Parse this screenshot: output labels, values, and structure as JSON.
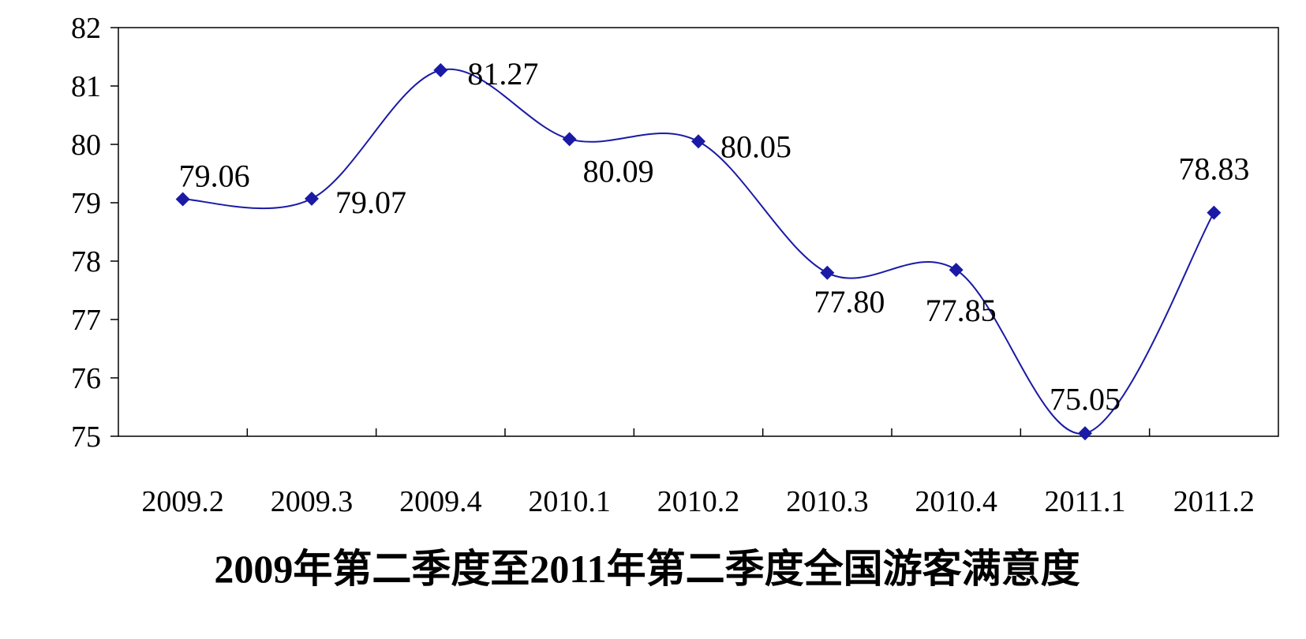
{
  "chart_data": {
    "type": "line",
    "title": "2009年第二季度至2011年第二季度全国游客满意度",
    "categories": [
      "2009.2",
      "2009.3",
      "2009.4",
      "2010.1",
      "2010.2",
      "2010.3",
      "2010.4",
      "2011.1",
      "2011.2"
    ],
    "series": [
      {
        "values": [
          79.06,
          79.07,
          81.27,
          80.09,
          80.05,
          77.8,
          77.85,
          75.05,
          78.83
        ],
        "labels": [
          "79.06",
          "79.07",
          "81.27",
          "80.09",
          "80.05",
          "77.80",
          "77.85",
          "75.05",
          "78.83"
        ],
        "color": "#1a1aa6",
        "marker": "diamond",
        "smooth": true
      }
    ],
    "yticks": [
      "75",
      "76",
      "77",
      "78",
      "79",
      "80",
      "81",
      "82"
    ],
    "ylim": [
      75,
      82
    ],
    "xlabel": "",
    "ylabel": "",
    "grid": false,
    "legend": "none"
  }
}
